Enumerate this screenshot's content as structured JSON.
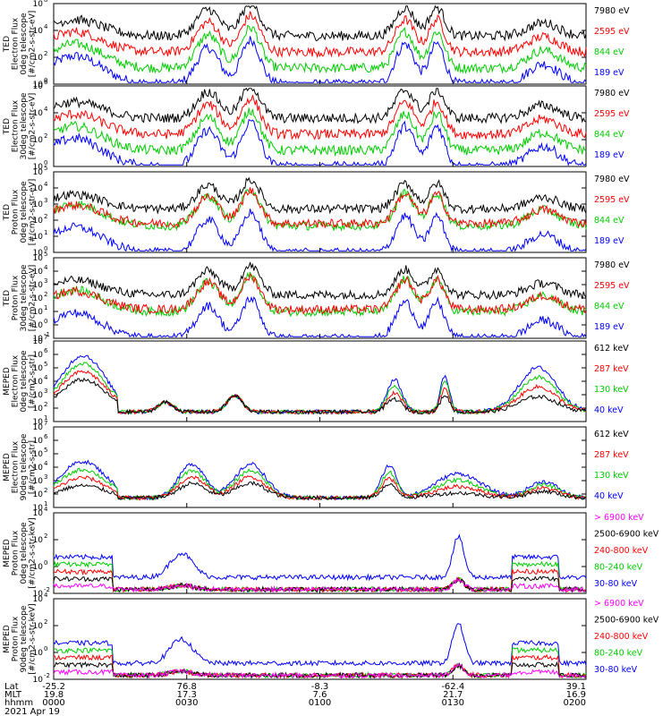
{
  "chart_data": {
    "type": "line",
    "yscale": "log",
    "x_ticks": {
      "lat": [
        "-25.2",
        "76.8",
        "-8.3",
        "-62.4",
        "39.1"
      ],
      "mlt": [
        "19.8",
        "17.3",
        "7.6",
        "21.7",
        "16.9"
      ],
      "hhmm": [
        "0000",
        "0030",
        "0100",
        "0130",
        "0200"
      ]
    },
    "x_row_labels": [
      "Lat",
      "MLT",
      "hhmm",
      "2021 Apr 19"
    ],
    "panels": [
      {
        "ylabel_lines": [
          "TED",
          "Electron Flux",
          "0deg telescope",
          "[#/cm2-s-str-eV]"
        ],
        "y_ticks": [
          [
            "10",
            "8"
          ],
          [
            "10",
            "4"
          ],
          [
            "10",
            "2"
          ],
          [
            "10",
            "0"
          ]
        ],
        "legend": [
          {
            "name": "7980 eV",
            "color": "#000000"
          },
          {
            "name": "2595 eV",
            "color": "#ff0000"
          },
          {
            "name": "844 eV",
            "color": "#00cc00"
          },
          {
            "name": "189 eV",
            "color": "#0000ff"
          }
        ]
      },
      {
        "ylabel_lines": [
          "TED",
          "Electron Flux",
          "30deg telescope",
          "[#/cm2-s-str-eV]"
        ],
        "y_ticks": [
          [
            "10",
            "6"
          ],
          [
            "10",
            "4"
          ],
          [
            "10",
            "2"
          ],
          [
            "10",
            "0"
          ]
        ],
        "legend": [
          {
            "name": "7980 eV",
            "color": "#000000"
          },
          {
            "name": "2595 eV",
            "color": "#ff0000"
          },
          {
            "name": "844 eV",
            "color": "#00cc00"
          },
          {
            "name": "189 eV",
            "color": "#0000ff"
          }
        ]
      },
      {
        "ylabel_lines": [
          "TED",
          "Proton Flux",
          "0deg telescope",
          "[#/cm2-s-str-eV]"
        ],
        "y_ticks": [
          [
            "10",
            "5"
          ],
          [
            "10",
            "4"
          ],
          [
            "10",
            "3"
          ],
          [
            "10",
            "2"
          ],
          [
            "10",
            "1"
          ],
          [
            "10",
            "0"
          ]
        ],
        "legend": [
          {
            "name": "7980 eV",
            "color": "#000000"
          },
          {
            "name": "2595 eV",
            "color": "#ff0000"
          },
          {
            "name": "844 eV",
            "color": "#00cc00"
          },
          {
            "name": "189 eV",
            "color": "#0000ff"
          }
        ]
      },
      {
        "ylabel_lines": [
          "TED",
          "Proton Flux",
          "30deg telescope",
          "[#/cm2-s-str-eV]"
        ],
        "y_ticks": [
          [
            "10",
            "5"
          ],
          [
            "10",
            "4"
          ],
          [
            "10",
            "3"
          ],
          [
            "10",
            "2"
          ],
          [
            "10",
            "1"
          ],
          [
            "10",
            "0"
          ],
          [
            "10",
            "-1"
          ]
        ],
        "legend": [
          {
            "name": "7980 eV",
            "color": "#000000"
          },
          {
            "name": "2595 eV",
            "color": "#ff0000"
          },
          {
            "name": "844 eV",
            "color": "#00cc00"
          },
          {
            "name": "189 eV",
            "color": "#0000ff"
          }
        ]
      },
      {
        "ylabel_lines": [
          "MEPED",
          "Electron Flux",
          "0deg telescope",
          "[#/cm2-s-str]"
        ],
        "y_ticks": [
          [
            "10",
            "7"
          ],
          [
            "10",
            "6"
          ],
          [
            "10",
            "5"
          ],
          [
            "10",
            "4"
          ],
          [
            "10",
            "3"
          ],
          [
            "10",
            "2"
          ],
          [
            "10",
            "1"
          ]
        ],
        "legend": [
          {
            "name": "612 keV",
            "color": "#000000"
          },
          {
            "name": "287 keV",
            "color": "#ff0000"
          },
          {
            "name": "130 keV",
            "color": "#00cc00"
          },
          {
            "name": "40 keV",
            "color": "#0000ff"
          }
        ]
      },
      {
        "ylabel_lines": [
          "MEPED",
          "Electron Flux",
          "90deg telescope",
          "[#/cm2-s-str]"
        ],
        "y_ticks": [
          [
            "10",
            "7"
          ],
          [
            "10",
            "6"
          ],
          [
            "10",
            "5"
          ],
          [
            "10",
            "4"
          ],
          [
            "10",
            "3"
          ],
          [
            "10",
            "2"
          ],
          [
            "10",
            "1"
          ]
        ],
        "legend": [
          {
            "name": "612 keV",
            "color": "#000000"
          },
          {
            "name": "287 keV",
            "color": "#ff0000"
          },
          {
            "name": "130 keV",
            "color": "#00cc00"
          },
          {
            "name": "40 keV",
            "color": "#0000ff"
          }
        ]
      },
      {
        "ylabel_lines": [
          "MEPED",
          "Proton Flux",
          "0deg telescope",
          "[#/cm2-s-str-keV]"
        ],
        "y_ticks": [
          [
            "10",
            "4"
          ],
          [
            "10",
            "2"
          ],
          [
            "10",
            "0"
          ],
          [
            "10",
            "-2"
          ]
        ],
        "legend": [
          {
            "name": "> 6900 keV",
            "color": "#ff00ff"
          },
          {
            "name": "2500-6900 keV",
            "color": "#000000"
          },
          {
            "name": "240-800 keV",
            "color": "#ff0000"
          },
          {
            "name": "80-240 keV",
            "color": "#00cc00"
          },
          {
            "name": "30-80 keV",
            "color": "#0000ff"
          }
        ]
      },
      {
        "ylabel_lines": [
          "MEPED",
          "Proton Flux",
          "90deg telescope",
          "[#/cm2-s-str-keV]"
        ],
        "y_ticks": [
          [
            "10",
            "4"
          ],
          [
            "10",
            "2"
          ],
          [
            "10",
            "0"
          ],
          [
            "10",
            "-2"
          ]
        ],
        "legend": [
          {
            "name": "> 6900 keV",
            "color": "#ff00ff"
          },
          {
            "name": "2500-6900 keV",
            "color": "#000000"
          },
          {
            "name": "240-800 keV",
            "color": "#ff0000"
          },
          {
            "name": "80-240 keV",
            "color": "#00cc00"
          },
          {
            "name": "30-80 keV",
            "color": "#0000ff"
          }
        ]
      }
    ]
  }
}
